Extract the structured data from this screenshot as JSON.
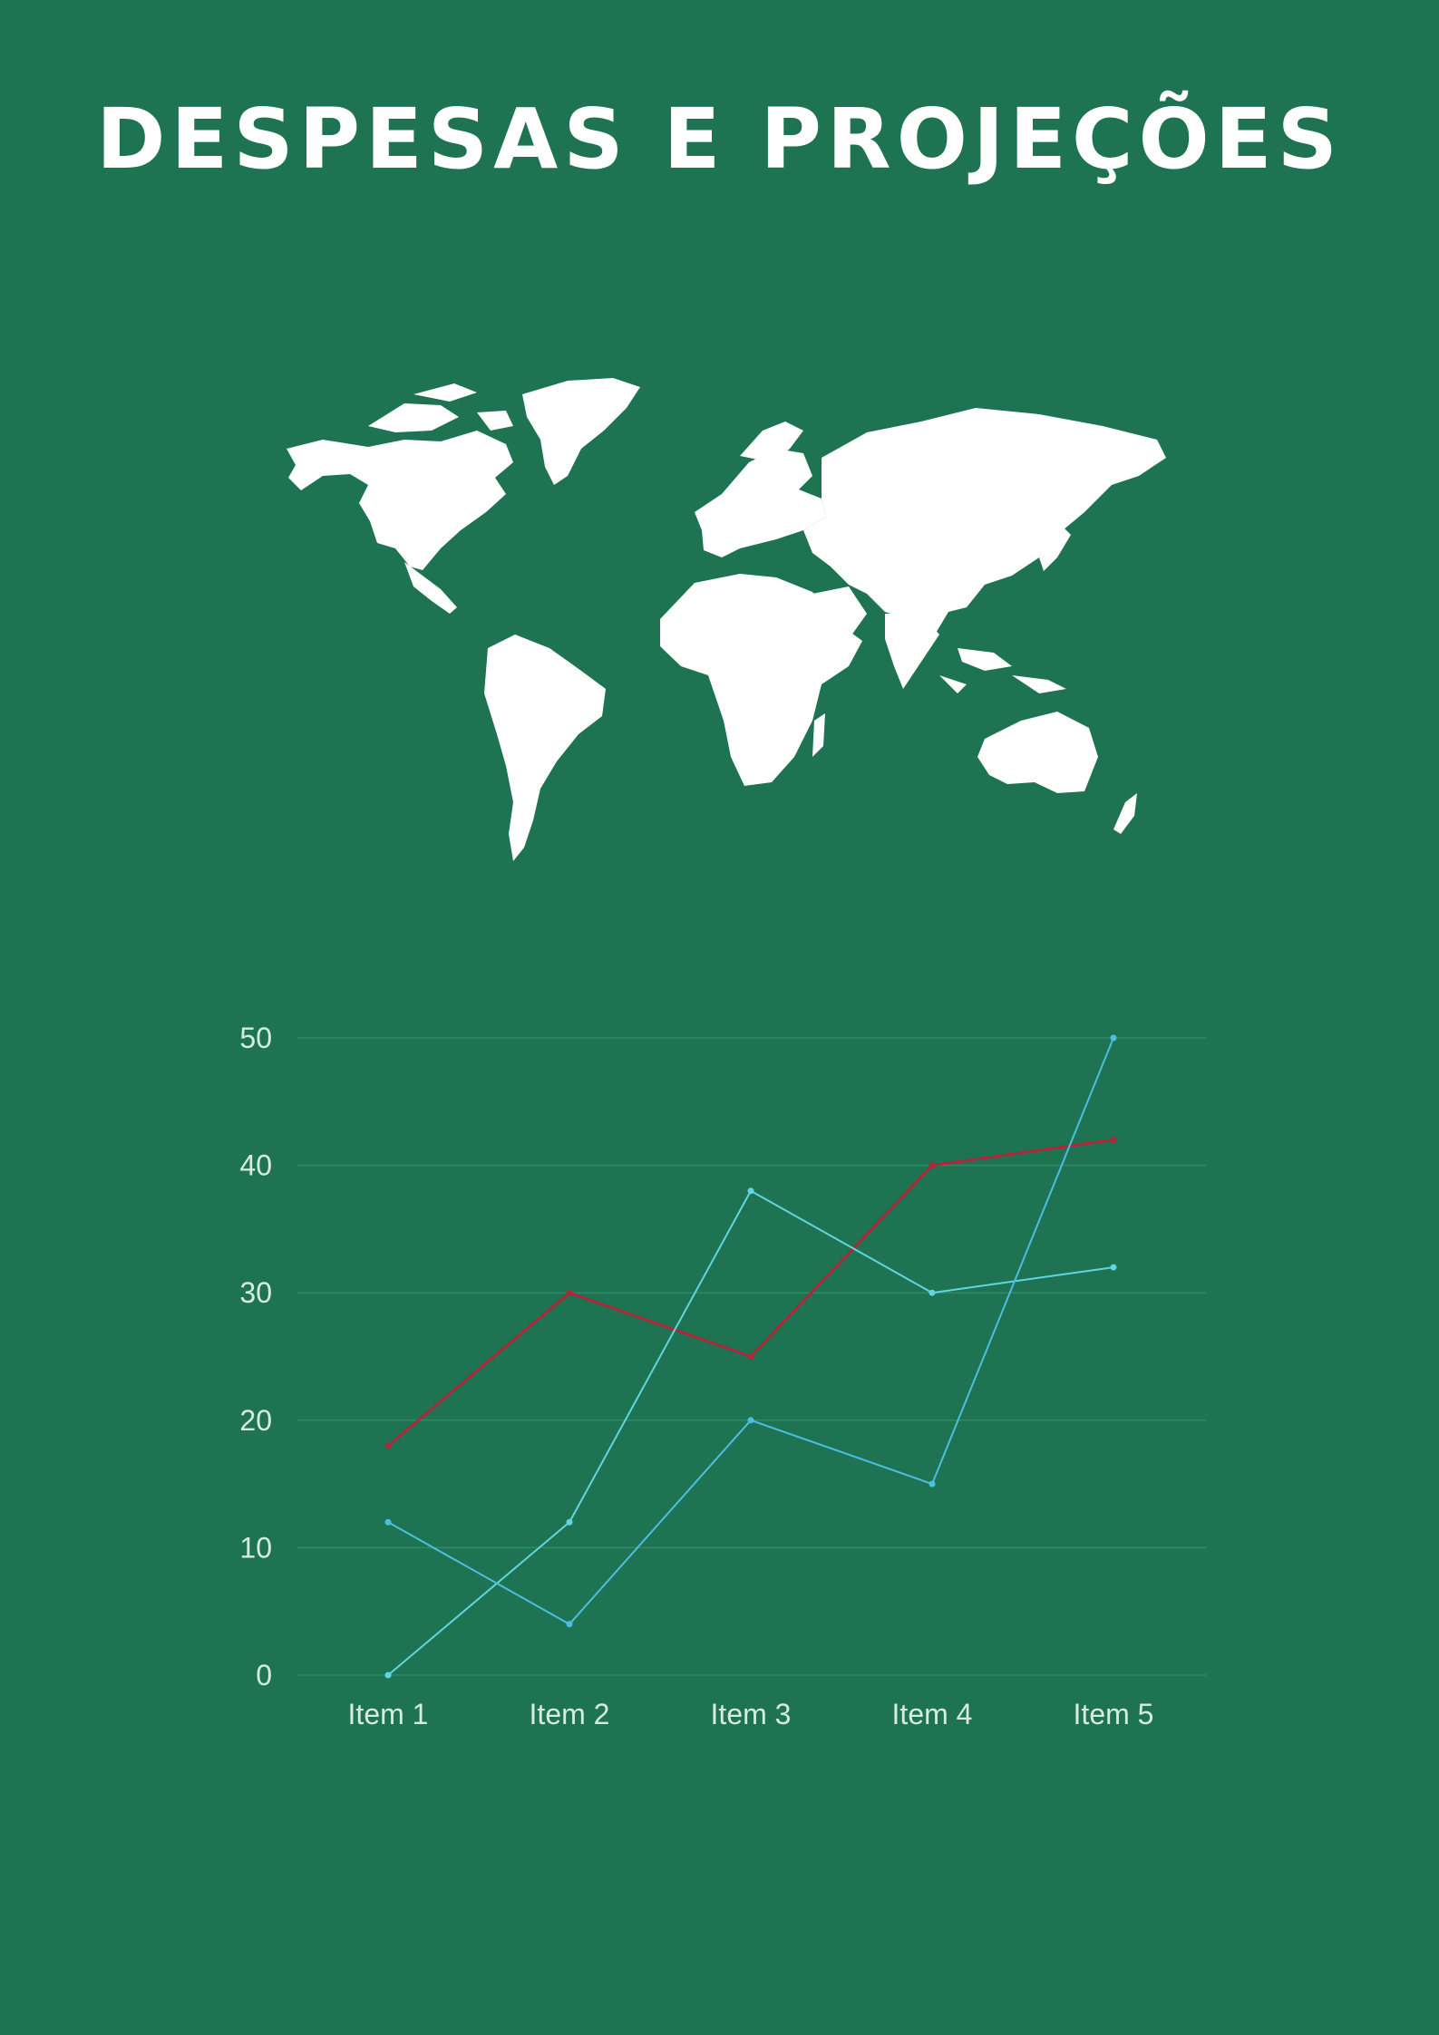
{
  "page": {
    "title": "DESPESAS E PROJEÇÕES"
  },
  "colors": {
    "background": "#1e7352",
    "map": "#ffffff",
    "grid": "#2f8a66",
    "series": [
      "#b0263a",
      "#5fd6e0",
      "#4cbfe0"
    ]
  },
  "chart_data": {
    "type": "line",
    "title": "",
    "xlabel": "",
    "ylabel": "",
    "categories": [
      "Item 1",
      "Item 2",
      "Item 3",
      "Item 4",
      "Item 5"
    ],
    "ylim": [
      0,
      50
    ],
    "yticks": [
      "0",
      "10",
      "20",
      "30",
      "40",
      "50"
    ],
    "grid": true,
    "legend": "none",
    "series": [
      {
        "values": [
          18,
          30,
          25,
          40,
          42
        ]
      },
      {
        "values": [
          0,
          12,
          38,
          30,
          32
        ]
      },
      {
        "values": [
          12,
          4,
          20,
          15,
          50
        ]
      }
    ]
  }
}
